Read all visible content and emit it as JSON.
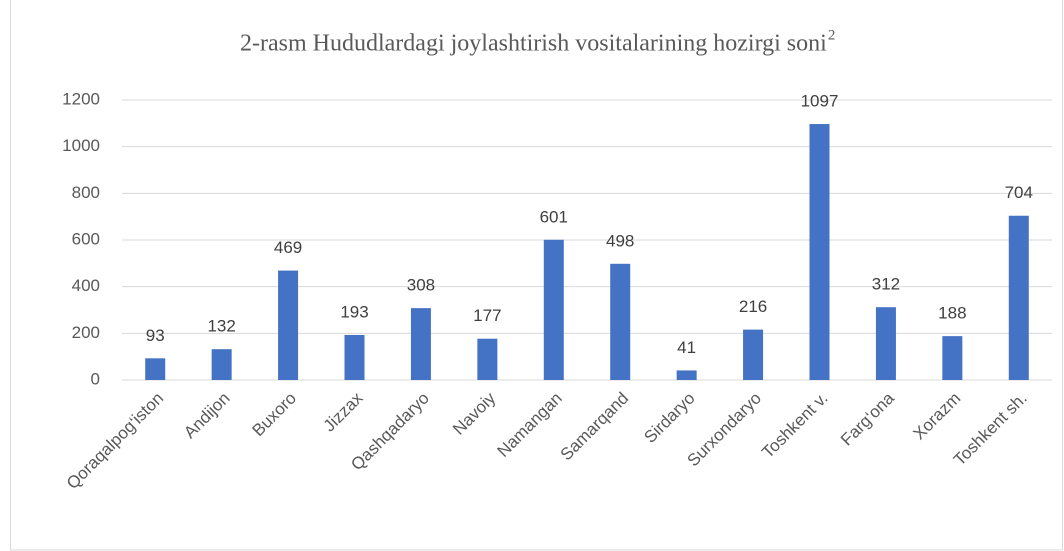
{
  "chart_data": {
    "type": "bar",
    "title": "2-rasm Hududlardagi  joylashtirish  vositalarining  hozirgi  soni",
    "title_superscript": "2",
    "categories": [
      "Qoraqalpog‘iston",
      "Andijon",
      "Buxoro",
      "Jizzax",
      "Qashqadaryo",
      "Navoiy",
      "Namangan",
      "Samarqand",
      "Sirdaryo",
      "Surxondaryo",
      "Toshkent v.",
      "Farg‘ona",
      "Xorazm",
      "Toshkent sh."
    ],
    "values": [
      93,
      132,
      469,
      193,
      308,
      177,
      601,
      498,
      41,
      216,
      1097,
      312,
      188,
      704
    ],
    "color": "#4472c4",
    "ylim": [
      0,
      1200
    ],
    "yticks": [
      0,
      200,
      400,
      600,
      800,
      1000,
      1200
    ],
    "grid": true
  }
}
